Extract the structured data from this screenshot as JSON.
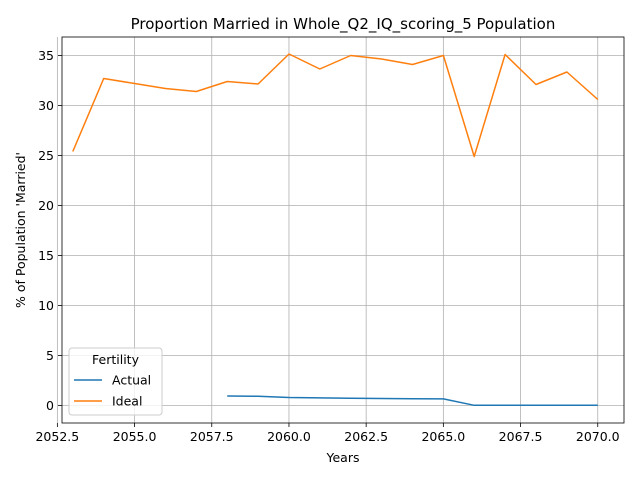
{
  "chart_data": {
    "type": "line",
    "title": "Proportion Married in Whole_Q2_IQ_scoring_5 Population",
    "xlabel": "Years",
    "ylabel": "% of Population 'Married'",
    "xlim": [
      2052.65,
      2070.85
    ],
    "ylim": [
      -1.75,
      36.85
    ],
    "xticks": [
      2052.5,
      2055.0,
      2057.5,
      2060.0,
      2062.5,
      2065.0,
      2067.5,
      2070.0
    ],
    "xtick_labels": [
      "2052.5",
      "2055.0",
      "2057.5",
      "2060.0",
      "2062.5",
      "2065.0",
      "2067.5",
      "2070.0"
    ],
    "yticks": [
      0,
      5,
      10,
      15,
      20,
      25,
      30,
      35
    ],
    "ytick_labels": [
      "0",
      "5",
      "10",
      "15",
      "20",
      "25",
      "30",
      "35"
    ],
    "grid": true,
    "legend": {
      "title": "Fertility",
      "position": "lower-left"
    },
    "series": [
      {
        "name": "Actual",
        "color": "#1f77b4",
        "x": [
          2058,
          2059,
          2060,
          2061,
          2062,
          2063,
          2064,
          2065,
          2066,
          2067,
          2068,
          2069,
          2070
        ],
        "y": [
          0.95,
          0.92,
          0.8,
          0.76,
          0.72,
          0.7,
          0.68,
          0.66,
          0.02,
          0.02,
          0.02,
          0.02,
          0.02
        ]
      },
      {
        "name": "Ideal",
        "color": "#ff7f0e",
        "x": [
          2053,
          2054,
          2055,
          2056,
          2057,
          2058,
          2059,
          2060,
          2061,
          2062,
          2063,
          2064,
          2065,
          2066,
          2067,
          2068,
          2069,
          2070
        ],
        "y": [
          25.4,
          32.7,
          32.2,
          31.7,
          31.4,
          32.4,
          32.15,
          35.15,
          33.65,
          35.0,
          34.65,
          34.1,
          35.0,
          24.9,
          35.1,
          32.1,
          33.35,
          30.6
        ]
      }
    ]
  }
}
